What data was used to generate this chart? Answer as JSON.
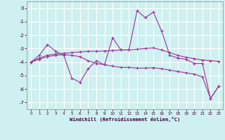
{
  "xlabel": "Windchill (Refroidissement éolien,°C)",
  "background_color": "#cff0f0",
  "grid_color": "#ffffff",
  "line_color": "#993399",
  "x": [
    0,
    1,
    2,
    3,
    4,
    5,
    6,
    7,
    8,
    9,
    10,
    11,
    12,
    13,
    14,
    15,
    16,
    17,
    18,
    19,
    20,
    21,
    22,
    23
  ],
  "line1": [
    -4.0,
    -3.5,
    -2.7,
    -3.2,
    -3.5,
    -5.2,
    -5.5,
    -4.5,
    -3.9,
    -4.2,
    -2.2,
    -3.1,
    -3.1,
    -0.2,
    -0.7,
    -0.3,
    -1.7,
    -3.5,
    -3.7,
    -3.8,
    -4.1,
    -4.1,
    -6.7,
    -5.8
  ],
  "line2": [
    -4.0,
    -3.7,
    -3.5,
    -3.4,
    -3.35,
    -3.3,
    -3.25,
    -3.2,
    -3.2,
    -3.18,
    -3.15,
    -3.1,
    -3.1,
    -3.05,
    -3.0,
    -2.95,
    -3.1,
    -3.3,
    -3.5,
    -3.65,
    -3.75,
    -3.85,
    -3.9,
    -3.95
  ],
  "line3": [
    -4.0,
    -3.8,
    -3.6,
    -3.5,
    -3.45,
    -3.5,
    -3.6,
    -3.9,
    -4.1,
    -4.2,
    -4.3,
    -4.4,
    -4.4,
    -4.45,
    -4.45,
    -4.42,
    -4.5,
    -4.6,
    -4.7,
    -4.8,
    -4.9,
    -5.1,
    -6.7,
    -5.8
  ],
  "ylim": [
    -7.5,
    0.5
  ],
  "xlim": [
    -0.5,
    23.5
  ],
  "yticks": [
    0,
    -1,
    -2,
    -3,
    -4,
    -5,
    -6,
    -7
  ],
  "xticks": [
    0,
    1,
    2,
    3,
    4,
    5,
    6,
    7,
    8,
    9,
    10,
    11,
    12,
    13,
    14,
    15,
    16,
    17,
    18,
    19,
    20,
    21,
    22,
    23
  ]
}
